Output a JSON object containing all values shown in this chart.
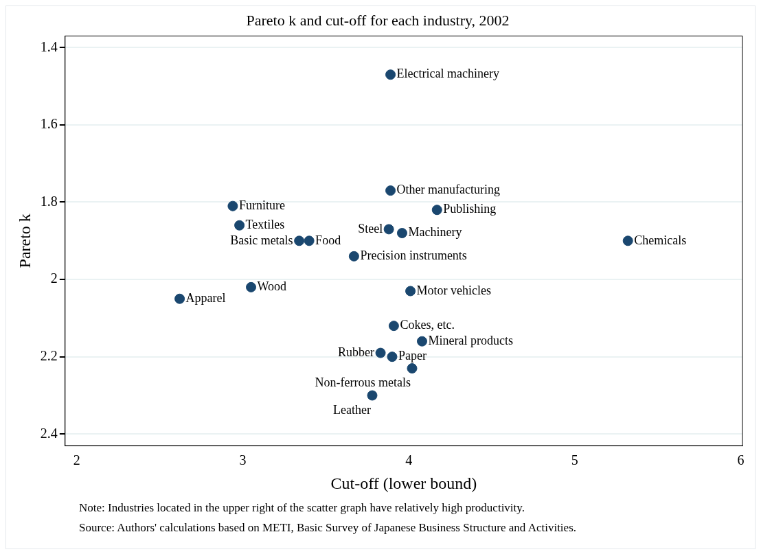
{
  "chart_data": {
    "type": "scatter",
    "title": "Pareto k and cut-off for each industry, 2002",
    "xlabel": "Cut-off (lower bound)",
    "ylabel": "Pareto k",
    "x": [
      3.89,
      3.89,
      2.94,
      4.17,
      2.98,
      3.88,
      3.96,
      3.34,
      3.4,
      5.32,
      3.67,
      3.05,
      2.62,
      4.01,
      3.91,
      4.08,
      3.83,
      3.9,
      4.02,
      3.78
    ],
    "values": [
      1.47,
      1.77,
      1.81,
      1.82,
      1.86,
      1.87,
      1.88,
      1.9,
      1.9,
      1.9,
      1.94,
      2.02,
      2.05,
      2.03,
      2.12,
      2.16,
      2.19,
      2.2,
      2.23,
      2.3
    ],
    "color": "#1a476f",
    "marker": "circle",
    "grid": "y",
    "legend": false,
    "xlim": [
      1.93,
      6.01
    ],
    "xticks": [
      2,
      3,
      4,
      5,
      6
    ],
    "ylim": [
      2.43,
      1.37
    ],
    "yticks": [
      1.4,
      1.6,
      1.8,
      2,
      2.2,
      2.4
    ],
    "annotations": [
      {
        "text": "Electrical machinery",
        "x": 3.89,
        "y": 1.47
      },
      {
        "text": "Other manufacturing",
        "x": 3.89,
        "y": 1.77
      },
      {
        "text": "Furniture",
        "x": 2.94,
        "y": 1.81
      },
      {
        "text": "Publishing",
        "x": 4.17,
        "y": 1.82
      },
      {
        "text": "Textiles",
        "x": 2.98,
        "y": 1.86
      },
      {
        "text": "Food",
        "x": 3.4,
        "y": 1.9
      },
      {
        "text": "Machinery",
        "x": 3.96,
        "y": 1.88
      },
      {
        "text": "Steel",
        "x": 3.88,
        "y": 1.87
      },
      {
        "text": "Basic metals",
        "x": 3.34,
        "y": 1.9
      },
      {
        "text": "Chemicals",
        "x": 5.32,
        "y": 1.9
      },
      {
        "text": "Precision instruments",
        "x": 3.67,
        "y": 1.94
      },
      {
        "text": "Wood",
        "x": 3.05,
        "y": 2.02
      },
      {
        "text": "Apparel",
        "x": 2.62,
        "y": 2.05
      },
      {
        "text": "Motor vehicles",
        "x": 4.01,
        "y": 2.03
      },
      {
        "text": "Cokes, etc.",
        "x": 3.91,
        "y": 2.12
      },
      {
        "text": "Mineral products",
        "x": 4.08,
        "y": 2.16
      },
      {
        "text": "Paper",
        "x": 3.9,
        "y": 2.2
      },
      {
        "text": "Rubber",
        "x": 3.83,
        "y": 2.19
      },
      {
        "text": "Non-ferrous metals",
        "x": 4.02,
        "y": 2.23
      },
      {
        "text": "Leather",
        "x": 3.78,
        "y": 2.3
      },
      "Note: Industries located in the upper right of the scatter graph have relatively high productivity.",
      "Source: Authors' calculations based on METI, Basic Survey of Japanese Business Structure and Activities."
    ]
  }
}
